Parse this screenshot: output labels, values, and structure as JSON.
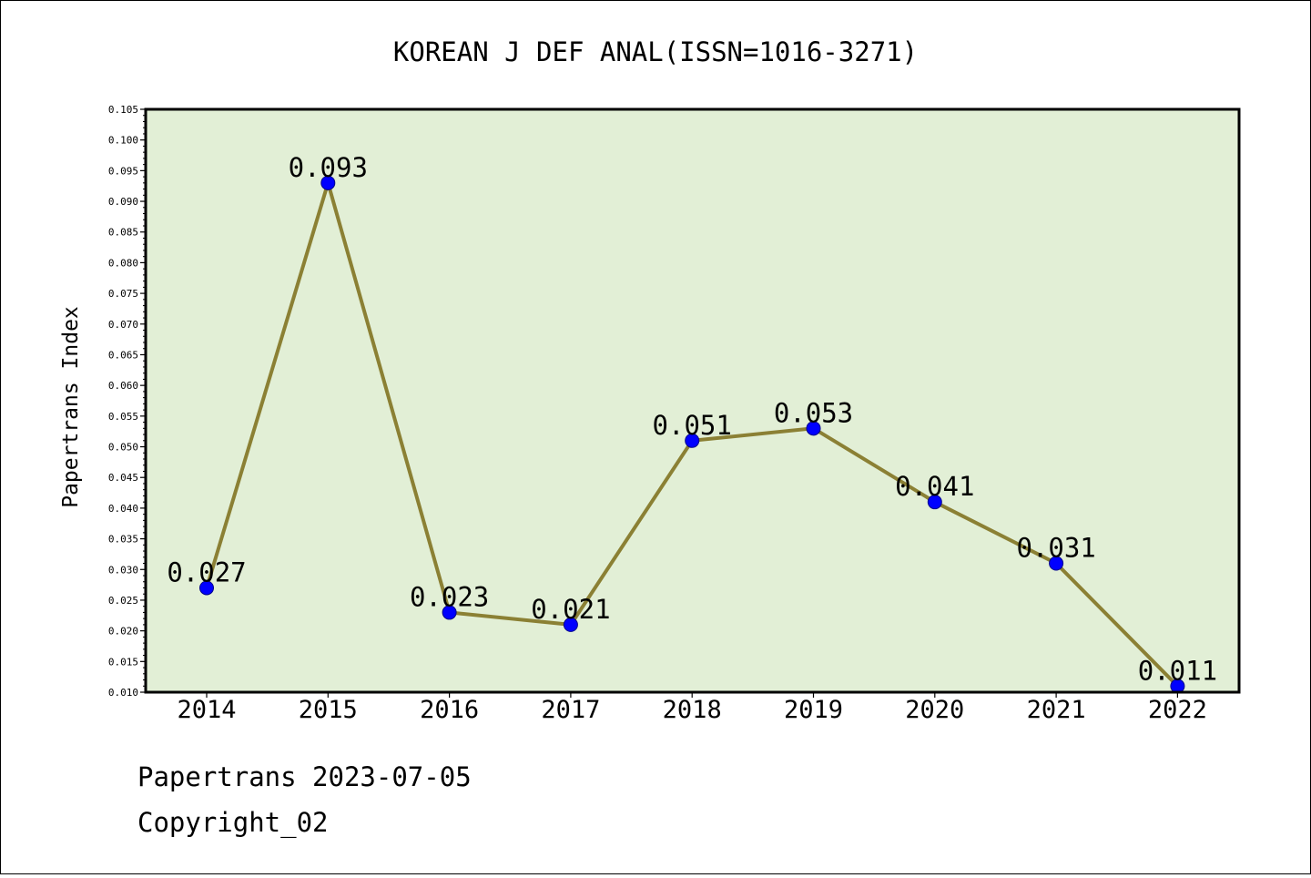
{
  "chart_data": {
    "type": "line",
    "title": "KOREAN J DEF ANAL(ISSN=1016-3271)",
    "ylabel": "Papertrans Index",
    "xlabel": "",
    "categories": [
      "2014",
      "2015",
      "2016",
      "2017",
      "2018",
      "2019",
      "2020",
      "2021",
      "2022"
    ],
    "series": [
      {
        "values": [
          0.027,
          0.093,
          0.023,
          0.021,
          0.051,
          0.053,
          0.041,
          0.031,
          0.011
        ],
        "labels": [
          "0.027",
          "0.093",
          "0.023",
          "0.021",
          "0.051",
          "0.053",
          "0.041",
          "0.031",
          "0.011"
        ]
      }
    ],
    "ylim": [
      0.01,
      0.105
    ],
    "yticks": [
      "0.010",
      "0.015",
      "0.020",
      "0.025",
      "0.030",
      "0.035",
      "0.040",
      "0.045",
      "0.050",
      "0.055",
      "0.060",
      "0.065",
      "0.070",
      "0.075",
      "0.080",
      "0.085",
      "0.090",
      "0.095",
      "0.100",
      "0.105"
    ],
    "grid": false,
    "legend": "none",
    "colors": {
      "line": "#8b8034",
      "marker": "#0000ff",
      "plot_background": "#e2efd6"
    }
  },
  "footer": {
    "line1": "Papertrans 2023-07-05",
    "line2": "Copyright_02"
  }
}
